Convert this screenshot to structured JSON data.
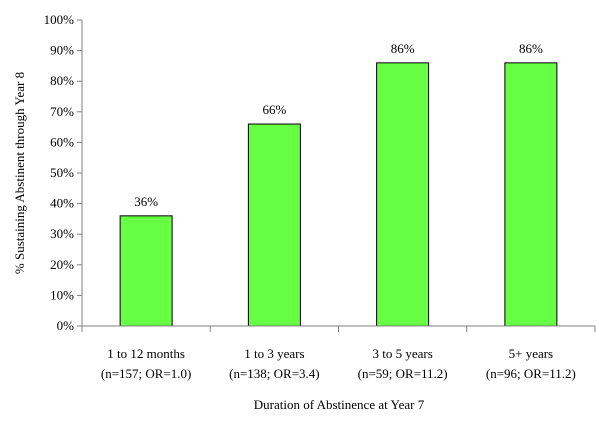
{
  "chart_data": {
    "type": "bar",
    "categories": [
      {
        "line1": "1 to 12 months",
        "line2": "(n=157; OR=1.0)"
      },
      {
        "line1": "1 to 3 years",
        "line2": "(n=138; OR=3.4)"
      },
      {
        "line1": "3 to 5 years",
        "line2": "(n=59; OR=11.2)"
      },
      {
        "line1": "5+ years",
        "line2": "(n=96; OR=11.2)"
      }
    ],
    "values": [
      36,
      66,
      86,
      86
    ],
    "data_labels": [
      "36%",
      "66%",
      "86%",
      "86%"
    ],
    "xlabel": "Duration of Abstinence at Year 7",
    "ylabel": "% Sustaining Abstinent through Year 8",
    "ylim": [
      0,
      100
    ],
    "yticks": [
      0,
      10,
      20,
      30,
      40,
      50,
      60,
      70,
      80,
      90,
      100
    ],
    "ytick_labels": [
      "0%",
      "10%",
      "20%",
      "30%",
      "40%",
      "50%",
      "60%",
      "70%",
      "80%",
      "90%",
      "100%"
    ],
    "grid": false,
    "legend": "none",
    "colors": {
      "bar_fill": "#66FF44",
      "bar_stroke": "#000000",
      "axis": "#808080"
    }
  }
}
